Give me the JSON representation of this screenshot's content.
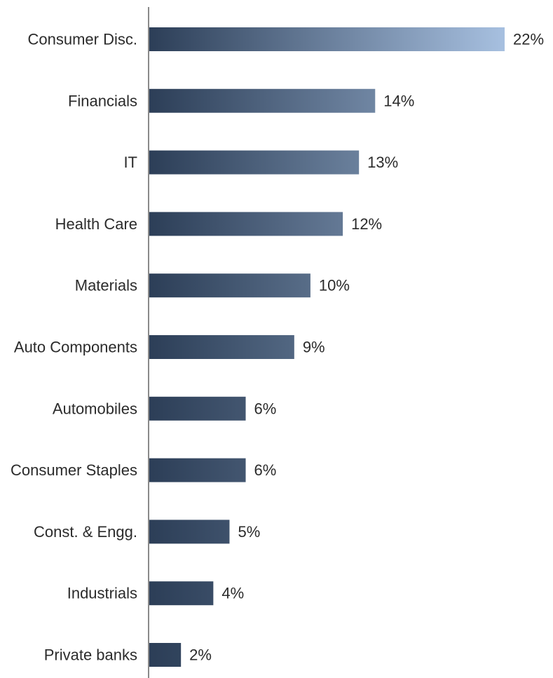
{
  "chart_data": {
    "type": "bar",
    "orientation": "horizontal",
    "categories": [
      "Consumer Disc.",
      "Financials",
      "IT",
      "Health Care",
      "Materials",
      "Auto Components",
      "Automobiles",
      "Consumer Staples",
      "Const. & Engg.",
      "Industrials",
      "Private banks"
    ],
    "values": [
      22,
      14,
      13,
      12,
      10,
      9,
      6,
      6,
      5,
      4,
      2
    ],
    "value_labels": [
      "22%",
      "14%",
      "13%",
      "12%",
      "10%",
      "9%",
      "6%",
      "6%",
      "5%",
      "4%",
      "2%"
    ],
    "xlim": [
      0,
      22
    ],
    "grid": false,
    "legend": "none",
    "colors": {
      "bar_start": "#2c3e57",
      "bar_end_max": "#a7c0e0",
      "axis": "#8a8a8a",
      "text": "#2b2b2b"
    }
  }
}
